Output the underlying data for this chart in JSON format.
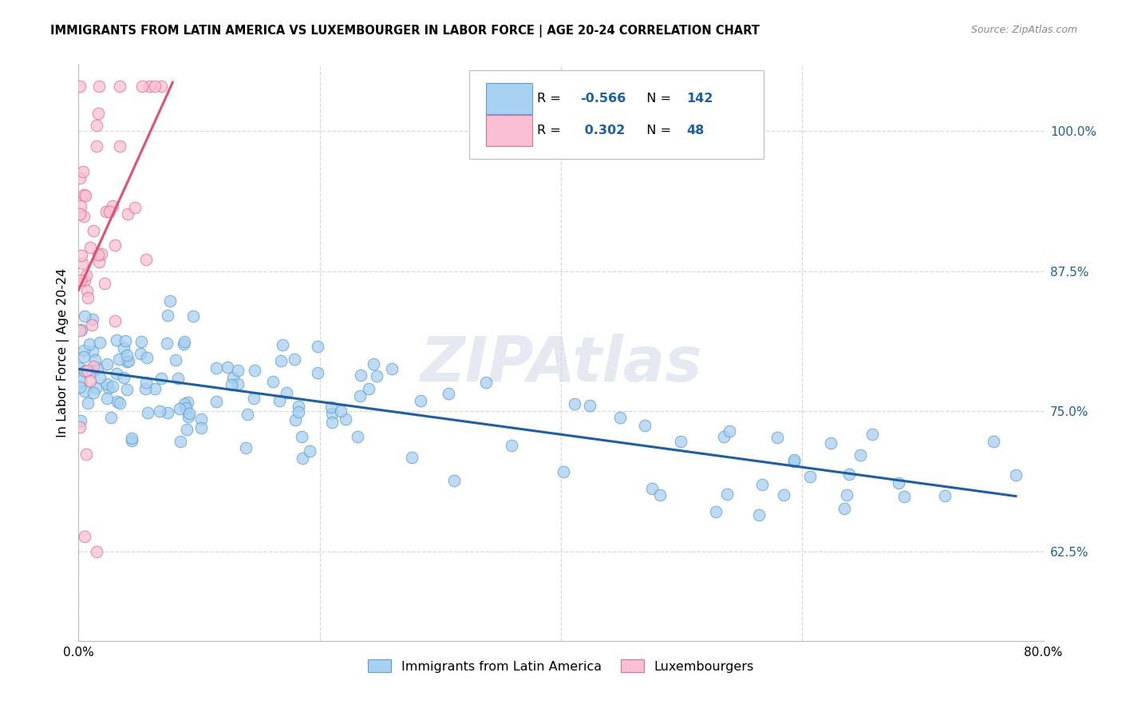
{
  "title": "IMMIGRANTS FROM LATIN AMERICA VS LUXEMBOURGER IN LABOR FORCE | AGE 20-24 CORRELATION CHART",
  "source": "Source: ZipAtlas.com",
  "ylabel": "In Labor Force | Age 20-24",
  "legend_label_blue": "Immigrants from Latin America",
  "legend_label_pink": "Luxembourgers",
  "R_blue": -0.566,
  "N_blue": 142,
  "R_pink": 0.302,
  "N_pink": 48,
  "blue_color": "#a8d0f0",
  "pink_color": "#f9bfd4",
  "blue_edge_color": "#5aa0d0",
  "pink_edge_color": "#e07090",
  "blue_line_color": "#1a5fa8",
  "pink_line_color": "#e05070",
  "watermark": "ZIPAtlas",
  "xlim": [
    0.0,
    0.8
  ],
  "ylim": [
    0.545,
    1.06
  ],
  "yticks": [
    0.625,
    0.75,
    0.875,
    1.0
  ],
  "ytick_labels": [
    "62.5%",
    "75.0%",
    "87.5%",
    "100.0%"
  ],
  "xtick_labels": [
    "0.0%",
    "80.0%"
  ],
  "grid_color": "#d8d8d8",
  "blue_seed": 99,
  "pink_seed": 77
}
